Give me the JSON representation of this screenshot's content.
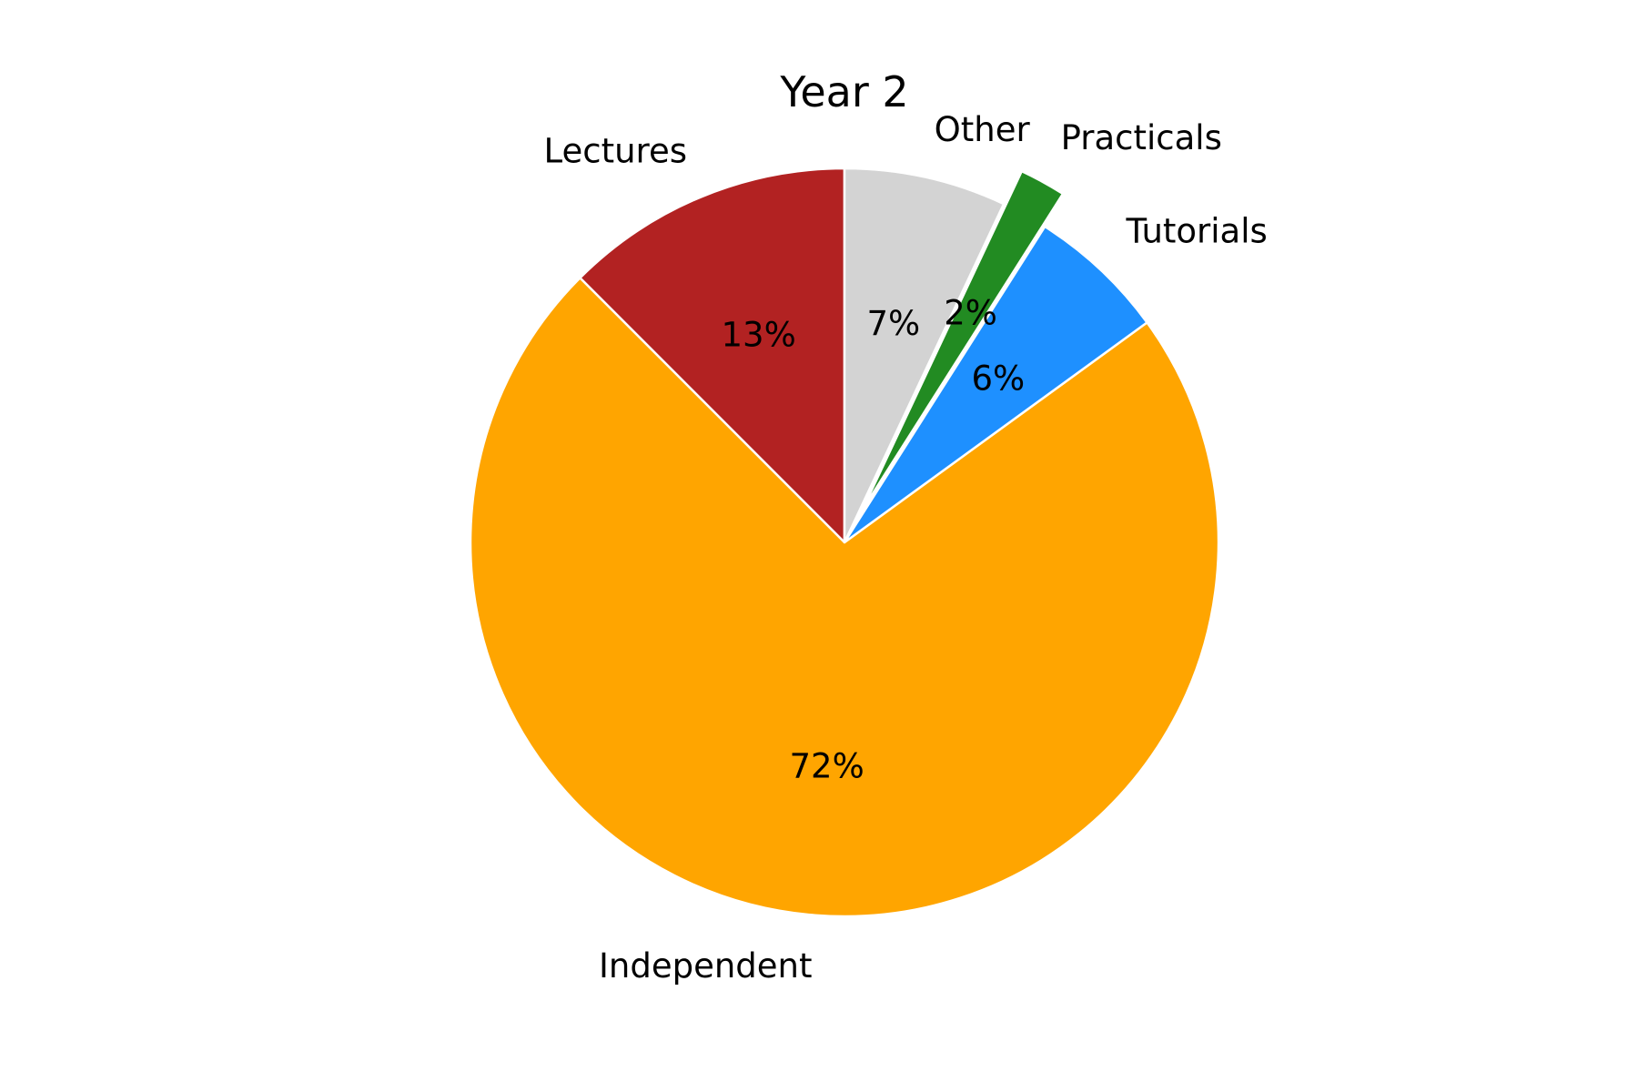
{
  "chart_data": {
    "type": "pie",
    "title": "Year 2",
    "start_angle_deg": 90,
    "direction": "counterclockwise",
    "slices": [
      {
        "label": "Lectures",
        "value": 12.5,
        "pct_label": "13%",
        "color": "#b22222",
        "exploded": false
      },
      {
        "label": "Independent",
        "value": 72.5,
        "pct_label": "72%",
        "color": "#ffa500",
        "exploded": false
      },
      {
        "label": "Tutorials",
        "value": 6.0,
        "pct_label": "6%",
        "color": "#1e90ff",
        "exploded": false
      },
      {
        "label": "Practicals",
        "value": 2.0,
        "pct_label": "2%",
        "color": "#228b22",
        "exploded": true
      },
      {
        "label": "Other",
        "value": 7.0,
        "pct_label": "7%",
        "color": "#d3d3d3",
        "exploded": false
      }
    ]
  }
}
